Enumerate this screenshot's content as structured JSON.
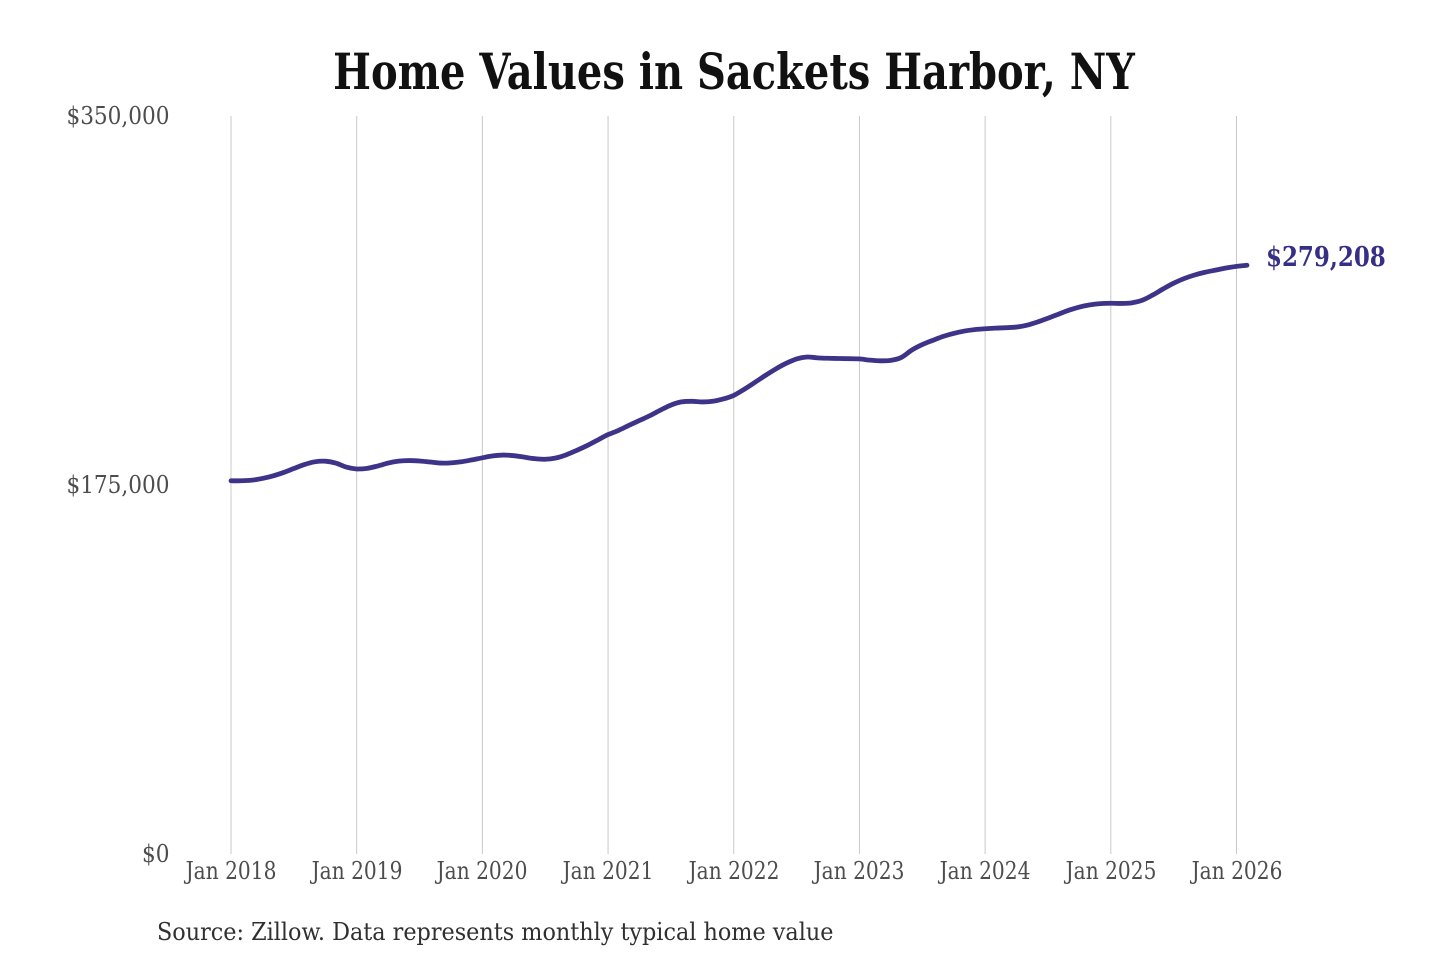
{
  "chart_data": {
    "type": "line",
    "title": "Home Values in Sackets Harbor, NY",
    "source_note": "Source: Zillow. Data represents monthly typical home value",
    "series": [
      {
        "name": "Typical home value (monthly)",
        "start": "Jan 2018",
        "end": "Feb 2026",
        "values": [
          177000,
          177000,
          177300,
          178100,
          179300,
          180900,
          182800,
          184700,
          186000,
          186300,
          185400,
          183500,
          182600,
          182900,
          184000,
          185400,
          186300,
          186600,
          186400,
          185900,
          185400,
          185500,
          186000,
          186900,
          187900,
          188800,
          189200,
          188900,
          188200,
          187500,
          187200,
          187800,
          189300,
          191400,
          193700,
          196300,
          198900,
          200900,
          203300,
          205600,
          207900,
          210500,
          212900,
          214400,
          214700,
          214400,
          214700,
          215800,
          217500,
          220400,
          223600,
          226900,
          230000,
          232700,
          234800,
          235700,
          235300,
          235100,
          235000,
          234900,
          234800,
          234200,
          233900,
          234100,
          235500,
          239000,
          241600,
          243600,
          245500,
          246900,
          248000,
          248700,
          249100,
          249400,
          249600,
          249900,
          250800,
          252300,
          254100,
          256000,
          257900,
          259400,
          260400,
          261000,
          261200,
          261100,
          261400,
          262600,
          265100,
          268000,
          270700,
          272900,
          274600,
          275900,
          276900,
          277900,
          278700,
          279208
        ]
      }
    ],
    "x_tick_labels": [
      "Jan 2018",
      "Jan 2019",
      "Jan 2020",
      "Jan 2021",
      "Jan 2022",
      "Jan 2023",
      "Jan 2024",
      "Jan 2025",
      "Jan 2026"
    ],
    "y_ticks": [
      {
        "label": "$0",
        "value": 0
      },
      {
        "label": "$175,000",
        "value": 175000
      },
      {
        "label": "$350,000",
        "value": 350000
      }
    ],
    "ylim": [
      0,
      350000
    ],
    "grid": "vertical-only",
    "legend": "none",
    "end_label": "$279,208",
    "end_value": 279208,
    "line_color": "#3d3489",
    "end_label_color": "#352f85",
    "grid_color": "#c9c9c9"
  }
}
